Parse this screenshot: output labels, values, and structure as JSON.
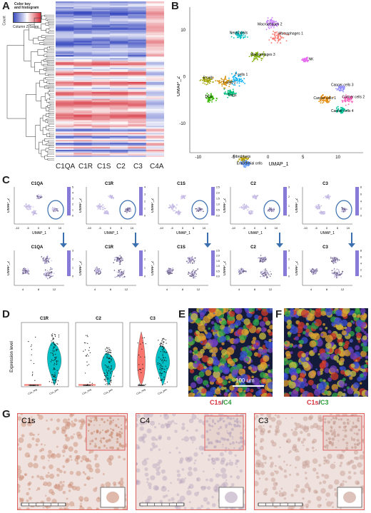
{
  "panel_labels": [
    "A",
    "B",
    "C",
    "D",
    "E",
    "F",
    "G"
  ],
  "panelA": {
    "key_title": "Color key\nand histogram",
    "key_ylabel": "Count",
    "key_xlabel": "Column Z-Score",
    "key_ticks": [
      "-2",
      "0",
      "2"
    ],
    "columns": [
      "C1QA",
      "C1R",
      "C1S",
      "C2",
      "C3",
      "C4A"
    ],
    "colors": {
      "low": "#3b4cc0",
      "mid": "#ffffff",
      "high": "#d6323d"
    }
  },
  "panelB": {
    "xlabel": "UMAP_1",
    "ylabel": "UMAP_2",
    "xticks": [
      "-10",
      "-5",
      "0",
      "5",
      "10"
    ],
    "yticks": [
      "10",
      "0",
      "-10"
    ],
    "clusters": [
      {
        "name": "Macrophages 2",
        "color": "#c77cff"
      },
      {
        "name": "Neutrophils",
        "color": "#00bfc4"
      },
      {
        "name": "Macrophages 1",
        "color": "#f8766d"
      },
      {
        "name": "Macrophages 3",
        "color": "#7cae00"
      },
      {
        "name": "NK",
        "color": "#e76bf3"
      },
      {
        "name": "T cells 1",
        "color": "#00b0f6"
      },
      {
        "name": "B cells",
        "color": "#a3a500"
      },
      {
        "name": "T cells 2",
        "color": "#d89000"
      },
      {
        "name": "DCs",
        "color": "#39b600"
      },
      {
        "name": "Tregs",
        "color": "#00bf7d"
      },
      {
        "name": "Cancer cells 3",
        "color": "#9590ff"
      },
      {
        "name": "Cancer cells 1",
        "color": "#e58700"
      },
      {
        "name": "Cancer cells 2",
        "color": "#ff62bc"
      },
      {
        "name": "Cancer cells 4",
        "color": "#00c19a"
      },
      {
        "name": "Fibroblasts",
        "color": "#b79f00"
      },
      {
        "name": "Endothelial cells",
        "color": "#619cff"
      }
    ]
  },
  "panelC": {
    "genes": [
      "C1QA",
      "C1R",
      "C1S",
      "C2",
      "C3"
    ],
    "xlabel": "UMAP_1",
    "ylabel": "UMAP_2",
    "xticks": [
      "-10",
      "-5",
      "0",
      "5",
      "10"
    ],
    "zoom_xticks": [
      "4",
      "8",
      "12"
    ],
    "scales": [
      [
        "0",
        "1",
        "2",
        "3",
        "4",
        "5"
      ],
      [
        "0",
        "1",
        "2",
        "3",
        "4"
      ],
      [
        "0.0",
        "0.5",
        "1.0",
        "1.5",
        "2.0",
        "2.5"
      ],
      [
        "0",
        "1",
        "2",
        "3"
      ],
      [
        "0",
        "2",
        "4",
        "6",
        "8"
      ]
    ],
    "zoom_scales": [
      [
        "0",
        "1",
        "2",
        "3"
      ],
      [
        "0",
        "1",
        "2",
        "3"
      ],
      [
        "0.0",
        "0.5",
        "1.0",
        "1.5",
        "2.0",
        "2.5"
      ],
      [
        "0",
        "1",
        "2",
        "3"
      ],
      [
        "0",
        "2",
        "4",
        "6",
        "8"
      ]
    ]
  },
  "panelD": {
    "ylabel": "Expression level",
    "genes": [
      "C1R",
      "C2",
      "C3"
    ],
    "groups": [
      "C1s_neg",
      "C1s_pos"
    ],
    "colors": {
      "neg": "#f8766d",
      "pos": "#00bfc4"
    }
  },
  "panelE": {
    "scale_bar": "100 um",
    "stain_left": "C1s",
    "stain_sep": "/",
    "stain_right": "C4",
    "left_color": "#d6323d",
    "right_color": "#2a9d3a"
  },
  "panelF": {
    "stain_left": "C1s",
    "stain_sep": "/",
    "stain_right": "C3",
    "left_color": "#d6323d",
    "right_color": "#2a9d3a"
  },
  "panelG": {
    "stains": [
      "C1s",
      "C4",
      "C3"
    ],
    "border_color": "#e06060"
  }
}
